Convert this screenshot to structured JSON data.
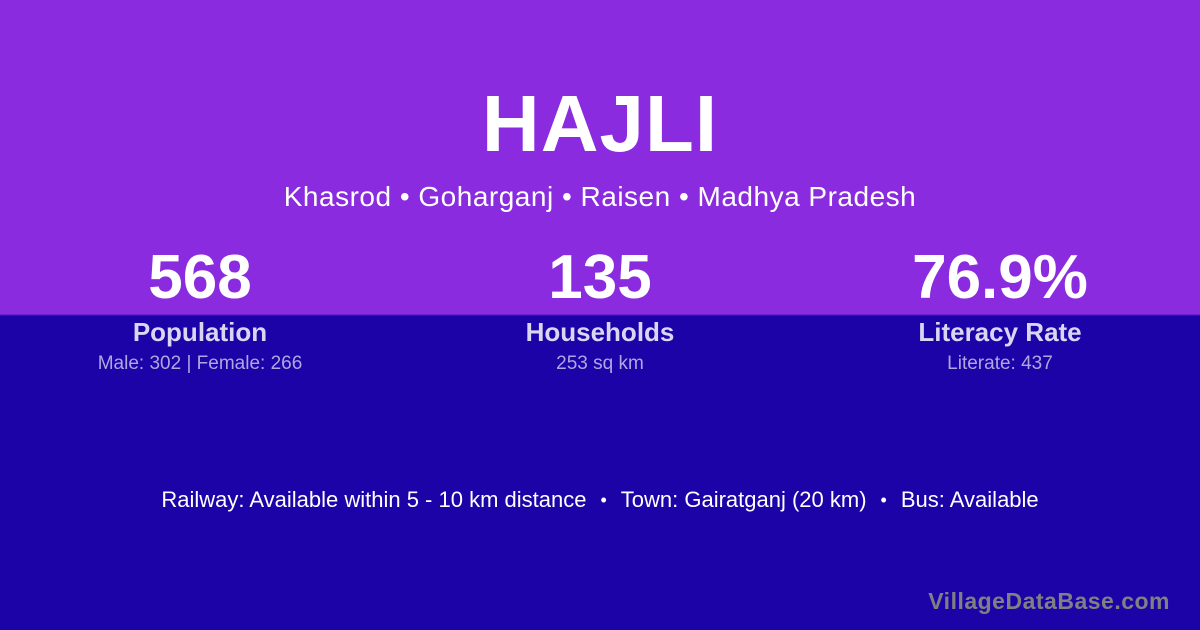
{
  "card": {
    "title": "HAJLI",
    "subtitle": "Khasrod • Goharganj • Raisen • Madhya Pradesh"
  },
  "stats": {
    "items": [
      {
        "value": "568",
        "label": "Population",
        "detail": "Male: 302 | Female: 266"
      },
      {
        "value": "135",
        "label": "Households",
        "detail": "253 sq km"
      },
      {
        "value": "76.9%",
        "label": "Literacy Rate",
        "detail": "Literate: 437"
      }
    ]
  },
  "transport": {
    "separator": "•",
    "items": [
      "Railway: Available within 5 - 10 km distance",
      "Town: Gairatganj (20 km)",
      "Bus: Available"
    ]
  },
  "watermark": "VillageDataBase.com",
  "colors": {
    "top_background": "#8a2bdf",
    "bottom_background": "#1b03a7",
    "title_text": "#ffffff",
    "stat_label": "#dad5f0",
    "stat_detail": "#b0a7e0",
    "watermark_text": "#808082"
  }
}
